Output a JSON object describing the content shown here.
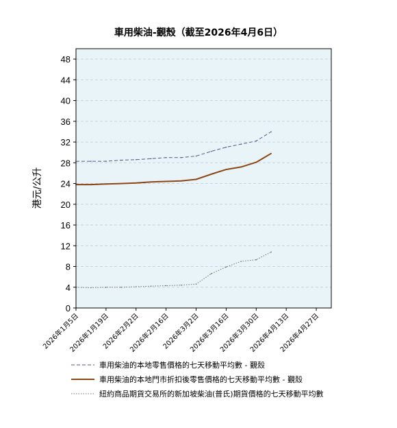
{
  "chart_data": {
    "type": "line",
    "title": "車用柴油-覲殼（截至2026年4月6日）",
    "ylabel": "港元/公升",
    "xlabel": "",
    "ylim": [
      0,
      50
    ],
    "yticks": [
      0,
      4,
      8,
      12,
      16,
      20,
      24,
      28,
      32,
      36,
      40,
      44,
      48
    ],
    "xlim": [
      "2026-01-05",
      "2026-05-04"
    ],
    "xticks": [
      {
        "date": "2026-01-05",
        "label": "2026年1月5日"
      },
      {
        "date": "2026-01-19",
        "label": "2026年1月19日"
      },
      {
        "date": "2026-02-02",
        "label": "2026年2月2日"
      },
      {
        "date": "2026-02-16",
        "label": "2026年2月16日"
      },
      {
        "date": "2026-03-02",
        "label": "2026年3月2日"
      },
      {
        "date": "2026-03-16",
        "label": "2026年3月16日"
      },
      {
        "date": "2026-03-30",
        "label": "2026年3月30日"
      },
      {
        "date": "2026-04-13",
        "label": "2026年4月13日"
      },
      {
        "date": "2026-04-27",
        "label": "2026年4月27日"
      }
    ],
    "grid": "horizontal-dashed",
    "legend_position": "bottom",
    "series": [
      {
        "name": "車用柴油的本地零售價格的七天移動平均數 - 覲殼",
        "style": "dashed",
        "color": "#4a5a8c",
        "points": [
          [
            "2026-01-05",
            28.3
          ],
          [
            "2026-01-12",
            28.3
          ],
          [
            "2026-01-19",
            28.3
          ],
          [
            "2026-01-26",
            28.5
          ],
          [
            "2026-02-02",
            28.6
          ],
          [
            "2026-02-09",
            28.8
          ],
          [
            "2026-02-16",
            29.0
          ],
          [
            "2026-02-23",
            29.0
          ],
          [
            "2026-03-02",
            29.3
          ],
          [
            "2026-03-09",
            30.2
          ],
          [
            "2026-03-16",
            31.0
          ],
          [
            "2026-03-23",
            31.6
          ],
          [
            "2026-03-30",
            32.2
          ],
          [
            "2026-04-06",
            34.0
          ]
        ]
      },
      {
        "name": "車用柴油的本地門市折扣後零售價格的七天移動平均數 - 覲殼",
        "style": "solid",
        "color": "#8b4513",
        "points": [
          [
            "2026-01-05",
            23.8
          ],
          [
            "2026-01-12",
            23.8
          ],
          [
            "2026-01-19",
            23.9
          ],
          [
            "2026-01-26",
            24.0
          ],
          [
            "2026-02-02",
            24.1
          ],
          [
            "2026-02-09",
            24.3
          ],
          [
            "2026-02-16",
            24.4
          ],
          [
            "2026-02-23",
            24.5
          ],
          [
            "2026-03-02",
            24.8
          ],
          [
            "2026-03-09",
            25.8
          ],
          [
            "2026-03-16",
            26.7
          ],
          [
            "2026-03-23",
            27.2
          ],
          [
            "2026-03-30",
            28.1
          ],
          [
            "2026-04-06",
            29.8
          ]
        ]
      },
      {
        "name": "紐約商品期貨交易所的新加坡柴油(普氏)期貨價格的七天移動平均數",
        "style": "dotted",
        "color": "#707070",
        "points": [
          [
            "2026-01-05",
            4.0
          ],
          [
            "2026-01-12",
            3.9
          ],
          [
            "2026-01-19",
            4.0
          ],
          [
            "2026-01-26",
            4.0
          ],
          [
            "2026-02-02",
            4.1
          ],
          [
            "2026-02-09",
            4.2
          ],
          [
            "2026-02-16",
            4.3
          ],
          [
            "2026-02-23",
            4.4
          ],
          [
            "2026-03-02",
            4.6
          ],
          [
            "2026-03-09",
            6.6
          ],
          [
            "2026-03-16",
            7.9
          ],
          [
            "2026-03-23",
            9.0
          ],
          [
            "2026-03-30",
            9.3
          ],
          [
            "2026-04-06",
            10.8
          ]
        ]
      }
    ]
  },
  "colors": {
    "plot_background": "#e8f4f8",
    "grid": "#c8d2da",
    "axis": "#000000"
  }
}
